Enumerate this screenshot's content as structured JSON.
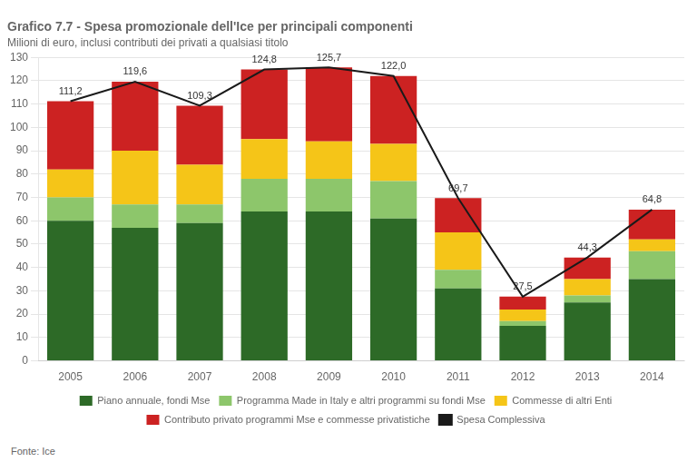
{
  "chart_data": {
    "type": "bar",
    "stacked": true,
    "title": "Grafico 7.7 - Spesa promozionale dell'Ice per principali componenti",
    "subtitle": "Milioni di euro, inclusi contributi dei privati a qualsiasi titolo",
    "source": "Fonte: Ice",
    "categories": [
      "2005",
      "2006",
      "2007",
      "2008",
      "2009",
      "2010",
      "2011",
      "2012",
      "2013",
      "2014"
    ],
    "series": [
      {
        "name": "Piano annuale, fondi Mse",
        "color": "#2d6a27",
        "values": [
          60,
          57,
          59,
          64,
          64,
          61,
          31,
          15,
          25,
          35
        ]
      },
      {
        "name": "Programma Made in Italy e altri programmi su fondi Mse",
        "color": "#8dc66b",
        "values": [
          10,
          10,
          8,
          14,
          14,
          16,
          8,
          2,
          3,
          12
        ]
      },
      {
        "name": "Commesse di altri Enti",
        "color": "#f5c518",
        "values": [
          12,
          23,
          17,
          17,
          16,
          16,
          16,
          5,
          7,
          5
        ]
      },
      {
        "name": "Contributo privato programmi Mse e commesse privatistiche",
        "color": "#cc2222",
        "values": [
          29.2,
          29.6,
          25.3,
          29.8,
          31.7,
          29.0,
          14.7,
          5.5,
          9.3,
          12.8
        ]
      },
      {
        "name": "Spesa Complessiva",
        "type": "line",
        "color": "#1a1a1a",
        "values": [
          111.2,
          119.6,
          109.3,
          124.8,
          125.7,
          122.0,
          69.7,
          27.5,
          44.3,
          64.8
        ],
        "data_labels": true,
        "value_labels": [
          "111,2",
          "119,6",
          "109,3",
          "124,8",
          "125,7",
          "122,0",
          "69,7",
          "27,5",
          "44,3",
          "64,8"
        ]
      }
    ],
    "ylim": [
      0,
      130
    ],
    "yticks": [
      0,
      10,
      20,
      30,
      40,
      50,
      60,
      70,
      80,
      90,
      100,
      110,
      120,
      130
    ],
    "grid": true,
    "legend": "bottom"
  }
}
